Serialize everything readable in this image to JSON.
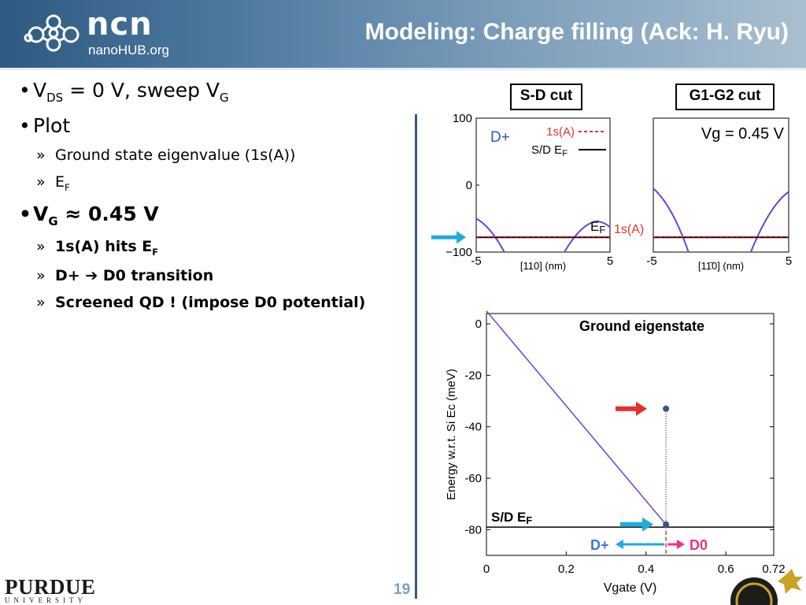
{
  "header": {
    "logo_text": "ncn",
    "logo_subtext": "nanoHUB.org",
    "title": "Modeling: Charge filling (Ack: H. Ryu)"
  },
  "bullets": {
    "b1": {
      "v": "V",
      "ds": "DS",
      "mid": " = 0 V, sweep V",
      "g": "G"
    },
    "b2": {
      "text": "Plot"
    },
    "b2a": {
      "text": "Ground state eigenvalue (1s(A))"
    },
    "b2b": {
      "e": "E",
      "f": "F"
    },
    "b3": {
      "v": "V",
      "g": "G",
      "rest": " ≈ 0.45 V"
    },
    "b3a": {
      "text": "1s(A) hits E",
      "f": "F"
    },
    "b3b": {
      "left": "D+ ",
      "arrow": "➔",
      "right": " D0 transition"
    },
    "b3c": {
      "text": "Screened QD ! (impose D0 potential)"
    }
  },
  "cuts": {
    "sd_label": "S-D cut",
    "g1g2_label": "G1-G2 cut"
  },
  "chart_data": [
    {
      "type": "line",
      "panel": "S-D cut",
      "xlabel": "[110] (nm)",
      "x_ticks": [
        "-5",
        "5"
      ],
      "y_ticks": [
        "100",
        "0",
        "−100"
      ],
      "ylim": [
        -100,
        100
      ],
      "xlim": [
        -5,
        5
      ],
      "annotations": [
        "D+",
        "E",
        "F",
        "1s(A)"
      ],
      "legend": [
        {
          "label": "1s(A)",
          "color": "#e8302a",
          "style": "dashed"
        },
        {
          "label": "S/D E",
          "sub": "F",
          "color": "#000000",
          "style": "solid"
        }
      ],
      "series": [
        {
          "name": "1s(A)",
          "y_level": -77
        },
        {
          "name": "S/D EF",
          "y_level": -78
        }
      ]
    },
    {
      "type": "line",
      "panel": "G1-G2 cut",
      "xlabel": "[11̄0] (nm)",
      "x_ticks": [
        "-5",
        "5"
      ],
      "xlim": [
        -5,
        5
      ],
      "ylim": [
        -100,
        100
      ],
      "annotations": [
        "Vg = 0.45 V"
      ],
      "series": [
        {
          "name": "1s(A)",
          "y_level": -77
        },
        {
          "name": "S/D EF",
          "y_level": -78
        }
      ]
    },
    {
      "type": "line",
      "title": "Ground eigenstate",
      "xlabel": "Vgate (V)",
      "ylabel": "Energy w.r.t. Si Ec (meV)",
      "xlim": [
        0,
        0.72
      ],
      "ylim": [
        -90,
        4
      ],
      "x_ticks": [
        "0",
        "0.2",
        "0.4",
        "0.6",
        "0.72"
      ],
      "y_ticks": [
        "0",
        "-20",
        "-40",
        "-60",
        "-80"
      ],
      "series": [
        {
          "name": "Ground eigenstate",
          "x": [
            0,
            0.45
          ],
          "y": [
            5,
            -78
          ],
          "color": "#6644dd"
        },
        {
          "name": "S/D EF",
          "x": [
            0,
            0.72
          ],
          "y": [
            -79,
            -79
          ],
          "color": "#000000"
        }
      ],
      "points": [
        {
          "x": 0.45,
          "y": -33
        },
        {
          "x": 0.45,
          "y": -78
        }
      ],
      "annotations": {
        "sdef": "S/D E",
        "sdef_sub": "F",
        "dplus": "D+",
        "dzero": "D0"
      }
    }
  ],
  "footer": {
    "purdue": "PURDUE",
    "university": "UNIVERSITY",
    "page": "19"
  },
  "colors": {
    "curve": "#6644dd",
    "red": "#e8302a",
    "cyan": "#22aadd",
    "pink": "#ee3388",
    "blue_text": "#3355cc",
    "dot": "#3a5580"
  }
}
